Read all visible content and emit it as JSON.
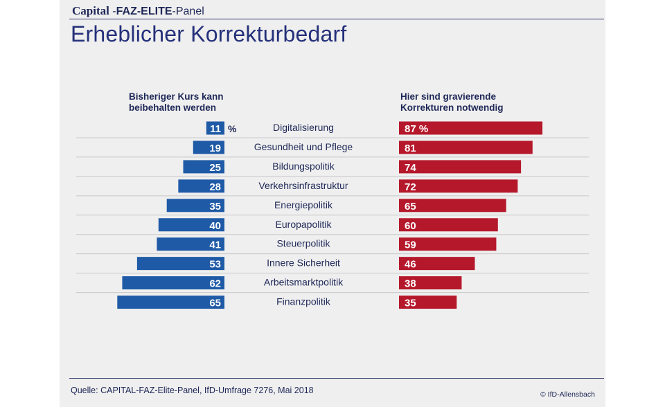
{
  "header": {
    "brand_capital": "Capital",
    "brand_sep": " -",
    "brand_faz": "FAZ-ELITE",
    "brand_panel": "-Panel",
    "title": "Erheblicher Korrekturbedarf"
  },
  "colors": {
    "blue": "#1f5aa6",
    "red": "#b5182b",
    "navy": "#1e2757",
    "panel": "#efefef"
  },
  "chart_data": {
    "type": "bar",
    "title": "Erheblicher Korrekturbedarf",
    "unit": "%",
    "categories": [
      "Digitalisierung",
      "Gesundheit und Pflege",
      "Bildungspolitik",
      "Verkehrsinfrastruktur",
      "Energiepolitik",
      "Europapolitik",
      "Steuerpolitik",
      "Innere Sicherheit",
      "Arbeitsmarktpolitik",
      "Finanzpolitik"
    ],
    "series": [
      {
        "name": "Bisheriger Kurs kann beibehalten werden",
        "side": "left",
        "values": [
          11,
          19,
          25,
          28,
          35,
          40,
          41,
          53,
          62,
          65
        ]
      },
      {
        "name": "Hier sind gravierende Korrekturen notwendig",
        "side": "right",
        "values": [
          87,
          81,
          74,
          72,
          65,
          60,
          59,
          46,
          38,
          35
        ]
      }
    ],
    "left_header": [
      "Bisheriger Kurs kann",
      "beibehalten werden"
    ],
    "right_header": [
      "Hier sind gravierende",
      "Korrekturen notwendig"
    ],
    "xlim": [
      0,
      100
    ]
  },
  "footer": {
    "source": "Quelle: CAPITAL-FAZ-Elite-Panel, IfD-Umfrage 7276, Mai 2018",
    "copyright": "© IfD-Allensbach"
  }
}
